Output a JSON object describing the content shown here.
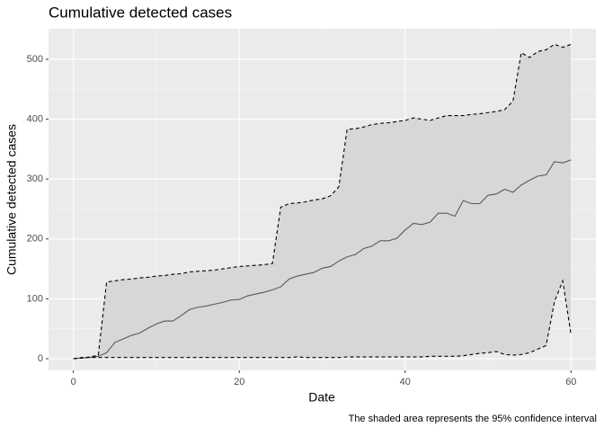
{
  "chart_data": {
    "type": "line",
    "title": "Cumulative detected cases",
    "xlabel": "Date",
    "ylabel": "Cumulative detected cases",
    "caption": "The shaded area represents the 95% confidence interval",
    "x": [
      0,
      1,
      2,
      3,
      4,
      5,
      6,
      7,
      8,
      9,
      10,
      11,
      12,
      13,
      14,
      15,
      16,
      17,
      18,
      19,
      20,
      21,
      22,
      23,
      24,
      25,
      26,
      27,
      28,
      29,
      30,
      31,
      32,
      33,
      34,
      35,
      36,
      37,
      38,
      39,
      40,
      41,
      42,
      43,
      44,
      45,
      46,
      47,
      48,
      49,
      50,
      51,
      52,
      53,
      54,
      55,
      56,
      57,
      58,
      59,
      60
    ],
    "series": [
      {
        "role": "estimate",
        "color": "#595959",
        "linestyle": "solid",
        "values": [
          0,
          1,
          2,
          4,
          10,
          27,
          33,
          39,
          43,
          51,
          58,
          63,
          63,
          72,
          82,
          86,
          88,
          91,
          94,
          98,
          99,
          105,
          108,
          111,
          115,
          120,
          133,
          138,
          141,
          144,
          151,
          154,
          163,
          170,
          174,
          184,
          188,
          197,
          197,
          201,
          215,
          226,
          224,
          228,
          243,
          243,
          238,
          264,
          259,
          259,
          273,
          275,
          283,
          278,
          290,
          298,
          305,
          307,
          329,
          327,
          332
        ]
      },
      {
        "role": "upper",
        "color": "#000000",
        "linestyle": "dashed",
        "values": [
          0,
          1,
          3,
          6,
          128,
          130,
          132,
          133,
          135,
          136,
          138,
          139,
          141,
          142,
          145,
          146,
          147,
          148,
          150,
          152,
          154,
          155,
          156,
          157,
          159,
          253,
          259,
          260,
          262,
          265,
          267,
          272,
          287,
          383,
          384,
          387,
          391,
          393,
          394,
          396,
          398,
          402,
          400,
          398,
          402,
          406,
          406,
          406,
          408,
          409,
          411,
          413,
          416,
          430,
          511,
          503,
          513,
          516,
          525,
          520,
          525
        ]
      },
      {
        "role": "lower",
        "color": "#000000",
        "linestyle": "dashed",
        "values": [
          0,
          2,
          2,
          2,
          2,
          2,
          2,
          2,
          2,
          2,
          2,
          2,
          2,
          2,
          2,
          2,
          2,
          2,
          2,
          2,
          2,
          2,
          2,
          2,
          2,
          2,
          2,
          3,
          2,
          2,
          2,
          2,
          2,
          3,
          3,
          3,
          3,
          3,
          3,
          3,
          3,
          3,
          3,
          4,
          4,
          4,
          4,
          5,
          7,
          9,
          10,
          12,
          7,
          6,
          7,
          10,
          16,
          22,
          95,
          130,
          40
        ]
      }
    ],
    "band_color": "#d3d3d3",
    "xlim": [
      -3,
      63
    ],
    "ylim": [
      -19.5,
      551
    ],
    "xticks": [
      0,
      20,
      40,
      60
    ],
    "yticks": [
      0,
      100,
      200,
      300,
      400,
      500
    ],
    "xminor": [
      10,
      30,
      50
    ],
    "yminor": [
      50,
      150,
      250,
      350,
      450
    ],
    "grid": true
  }
}
